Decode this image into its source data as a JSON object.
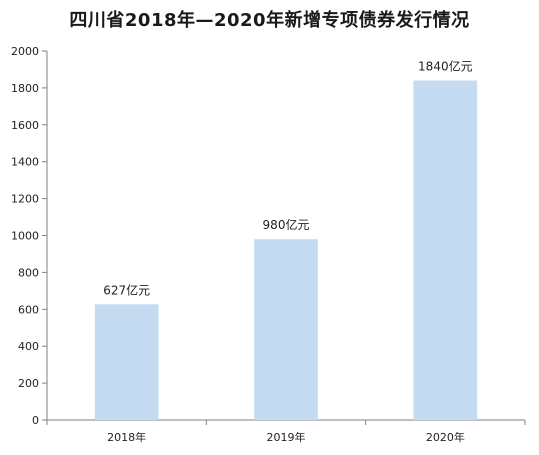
{
  "chart_data": {
    "type": "bar",
    "title": "四川省2018年—2020年新增专项债券发行情况",
    "categories": [
      "2018年",
      "2019年",
      "2020年"
    ],
    "values": [
      627,
      980,
      1840
    ],
    "data_labels": [
      "627亿元",
      "980亿元",
      "1840亿元"
    ],
    "xlabel": "",
    "ylabel": "",
    "ylim": [
      0,
      2000
    ],
    "yticks": [
      "0",
      "200",
      "400",
      "600",
      "800",
      "1000",
      "1200",
      "1400",
      "1600",
      "1800",
      "2000"
    ],
    "grid": false,
    "legend": "none",
    "colors": {
      "bar": "#c5dbf1",
      "axis": "#808080"
    }
  }
}
